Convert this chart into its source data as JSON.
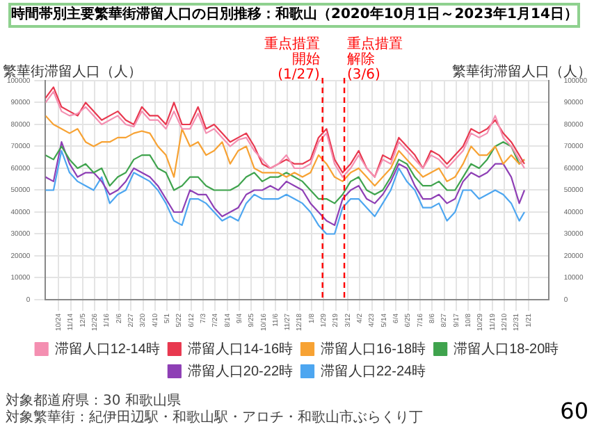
{
  "chart_data": {
    "type": "line",
    "title": "時間帯別主要繁華街滞留人口の日別推移：和歌山（2020年10月1日～2023年1月14日）",
    "ylabel": "繁華街滞留人口（人）",
    "y2label": "繁華街滞留人口（人）",
    "x": [
      "2020-10-01",
      "2020-10-15",
      "2020-10-29",
      "2020-11-12",
      "2020-11-26",
      "2020-12-10",
      "2020-12-24",
      "2021-01-07",
      "2021-01-21",
      "2021-02-04",
      "2021-02-18",
      "2021-03-04",
      "2021-03-18",
      "2021-04-01",
      "2021-04-15",
      "2021-04-29",
      "2021-05-13",
      "2021-05-27",
      "2021-06-10",
      "2021-06-24",
      "2021-07-08",
      "2021-07-22",
      "2021-08-05",
      "2021-08-19",
      "2021-09-02",
      "2021-09-16",
      "2021-09-30",
      "2021-10-14",
      "2021-10-28",
      "2021-11-11",
      "2021-11-25",
      "2021-12-09",
      "2021-12-23",
      "2022-01-06",
      "2022-01-20",
      "2022-02-03",
      "2022-02-17",
      "2022-03-03",
      "2022-03-17",
      "2022-03-31",
      "2022-04-14",
      "2022-04-28",
      "2022-05-12",
      "2022-05-26",
      "2022-06-09",
      "2022-06-23",
      "2022-07-07",
      "2022-07-21",
      "2022-08-04",
      "2022-08-18",
      "2022-09-01",
      "2022-09-15",
      "2022-09-29",
      "2022-10-13",
      "2022-10-27",
      "2022-11-10",
      "2022-11-24",
      "2022-12-08",
      "2022-12-22",
      "2023-01-05",
      "2023-01-14"
    ],
    "series": [
      {
        "name": "滞留人口12-14時",
        "color": "#f48fb1",
        "values": [
          90000,
          95000,
          86000,
          84000,
          85000,
          88000,
          84000,
          80000,
          82000,
          84000,
          80000,
          79000,
          86000,
          82000,
          82000,
          78000,
          86000,
          78000,
          78000,
          85000,
          76000,
          78000,
          74000,
          70000,
          73000,
          74000,
          68000,
          64000,
          60000,
          62000,
          66000,
          60000,
          60000,
          62000,
          72000,
          76000,
          62000,
          56000,
          60000,
          66000,
          60000,
          56000,
          64000,
          62000,
          72000,
          68000,
          64000,
          60000,
          66000,
          64000,
          60000,
          64000,
          68000,
          76000,
          74000,
          76000,
          84000,
          74000,
          70000,
          64000,
          60000
        ]
      },
      {
        "name": "滞留人口14-16時",
        "color": "#e8384f",
        "values": [
          92000,
          97000,
          88000,
          86000,
          84000,
          90000,
          86000,
          82000,
          84000,
          86000,
          82000,
          80000,
          88000,
          84000,
          84000,
          80000,
          90000,
          80000,
          80000,
          88000,
          78000,
          80000,
          76000,
          72000,
          74000,
          76000,
          70000,
          62000,
          60000,
          62000,
          64000,
          62000,
          62000,
          64000,
          74000,
          78000,
          64000,
          58000,
          62000,
          68000,
          60000,
          56000,
          66000,
          64000,
          74000,
          70000,
          66000,
          60000,
          68000,
          66000,
          62000,
          66000,
          70000,
          78000,
          76000,
          78000,
          82000,
          76000,
          72000,
          66000,
          62000
        ]
      },
      {
        "name": "滞留人口16-18時",
        "color": "#f7a233",
        "values": [
          84000,
          80000,
          78000,
          76000,
          78000,
          72000,
          70000,
          72000,
          72000,
          74000,
          74000,
          76000,
          77000,
          76000,
          70000,
          66000,
          56000,
          78000,
          70000,
          72000,
          66000,
          68000,
          72000,
          62000,
          68000,
          70000,
          60000,
          58000,
          58000,
          58000,
          56000,
          58000,
          56000,
          58000,
          66000,
          62000,
          56000,
          54000,
          58000,
          60000,
          56000,
          52000,
          56000,
          60000,
          68000,
          64000,
          60000,
          56000,
          58000,
          60000,
          54000,
          56000,
          62000,
          70000,
          66000,
          66000,
          70000,
          62000,
          66000,
          62000,
          64000
        ]
      },
      {
        "name": "滞留人口18-20時",
        "color": "#3fa34d",
        "values": [
          66000,
          64000,
          70000,
          64000,
          60000,
          62000,
          58000,
          60000,
          52000,
          56000,
          58000,
          64000,
          66000,
          66000,
          60000,
          58000,
          50000,
          52000,
          56000,
          56000,
          52000,
          50000,
          50000,
          50000,
          52000,
          56000,
          58000,
          54000,
          56000,
          56000,
          58000,
          56000,
          54000,
          50000,
          46000,
          46000,
          44000,
          48000,
          54000,
          56000,
          50000,
          48000,
          50000,
          56000,
          64000,
          62000,
          56000,
          52000,
          52000,
          54000,
          50000,
          50000,
          56000,
          62000,
          60000,
          64000,
          70000,
          72000,
          70000,
          62000,
          64000
        ]
      },
      {
        "name": "滞留人口20-22時",
        "color": "#8e3fb5",
        "values": [
          56000,
          54000,
          72000,
          62000,
          56000,
          58000,
          58000,
          54000,
          48000,
          50000,
          54000,
          60000,
          58000,
          56000,
          52000,
          46000,
          40000,
          40000,
          50000,
          48000,
          48000,
          42000,
          38000,
          40000,
          42000,
          48000,
          50000,
          50000,
          52000,
          50000,
          54000,
          52000,
          50000,
          44000,
          40000,
          36000,
          34000,
          46000,
          50000,
          52000,
          46000,
          44000,
          48000,
          54000,
          62000,
          60000,
          52000,
          46000,
          46000,
          48000,
          44000,
          46000,
          54000,
          58000,
          56000,
          58000,
          62000,
          62000,
          56000,
          44000,
          50000
        ]
      },
      {
        "name": "滞留人口22-24時",
        "color": "#4da6f0",
        "values": [
          50000,
          50000,
          68000,
          58000,
          54000,
          52000,
          50000,
          56000,
          44000,
          48000,
          50000,
          58000,
          56000,
          54000,
          50000,
          44000,
          36000,
          34000,
          46000,
          46000,
          44000,
          40000,
          36000,
          38000,
          36000,
          44000,
          48000,
          46000,
          46000,
          46000,
          48000,
          46000,
          44000,
          40000,
          34000,
          30000,
          30000,
          42000,
          46000,
          46000,
          42000,
          38000,
          44000,
          50000,
          60000,
          54000,
          50000,
          42000,
          42000,
          44000,
          36000,
          40000,
          50000,
          50000,
          46000,
          48000,
          50000,
          48000,
          44000,
          36000,
          40000
        ]
      }
    ],
    "xlim": [
      "2020-10-01",
      "2023-02-25"
    ],
    "xticks": [
      {
        "value": "2020-10-24",
        "label": "10/24"
      },
      {
        "value": "2020-11-14",
        "label": "11/14"
      },
      {
        "value": "2020-12-05",
        "label": "12/5"
      },
      {
        "value": "2020-12-26",
        "label": "12/26"
      },
      {
        "value": "2021-01-16",
        "label": "1/16"
      },
      {
        "value": "2021-02-06",
        "label": "2/6"
      },
      {
        "value": "2021-02-27",
        "label": "2/27"
      },
      {
        "value": "2021-03-20",
        "label": "3/20"
      },
      {
        "value": "2021-04-10",
        "label": "4/10"
      },
      {
        "value": "2021-05-01",
        "label": "5/1"
      },
      {
        "value": "2021-05-22",
        "label": "5/22"
      },
      {
        "value": "2021-06-12",
        "label": "6/12"
      },
      {
        "value": "2021-07-03",
        "label": "7/3"
      },
      {
        "value": "2021-07-24",
        "label": "7/24"
      },
      {
        "value": "2021-08-14",
        "label": "8/14"
      },
      {
        "value": "2021-09-04",
        "label": "9/4"
      },
      {
        "value": "2021-09-25",
        "label": "9/25"
      },
      {
        "value": "2021-10-16",
        "label": "10/16"
      },
      {
        "value": "2021-11-06",
        "label": "11/6"
      },
      {
        "value": "2021-11-27",
        "label": "11/27"
      },
      {
        "value": "2021-12-18",
        "label": "12/18"
      },
      {
        "value": "2022-01-08",
        "label": "1/8"
      },
      {
        "value": "2022-01-29",
        "label": "1/29"
      },
      {
        "value": "2022-02-19",
        "label": "2/19"
      },
      {
        "value": "2022-03-12",
        "label": "3/12"
      },
      {
        "value": "2022-04-02",
        "label": "4/2"
      },
      {
        "value": "2022-04-23",
        "label": "4/23"
      },
      {
        "value": "2022-05-14",
        "label": "5/14"
      },
      {
        "value": "2022-06-04",
        "label": "6/4"
      },
      {
        "value": "2022-06-25",
        "label": "6/25"
      },
      {
        "value": "2022-07-16",
        "label": "7/16"
      },
      {
        "value": "2022-08-06",
        "label": "8/6"
      },
      {
        "value": "2022-08-27",
        "label": "8/27"
      },
      {
        "value": "2022-09-17",
        "label": "9/17"
      },
      {
        "value": "2022-10-08",
        "label": "10/8"
      },
      {
        "value": "2022-10-29",
        "label": "10/29"
      },
      {
        "value": "2022-11-19",
        "label": "11/19"
      },
      {
        "value": "2022-12-10",
        "label": "12/10"
      },
      {
        "value": "2022-12-31",
        "label": "12/31"
      },
      {
        "value": "2023-01-21",
        "label": "1/21"
      }
    ],
    "ylim": [
      0,
      100000
    ],
    "yticks": [
      0,
      10000,
      20000,
      30000,
      40000,
      50000,
      60000,
      70000,
      80000,
      90000,
      100000
    ],
    "y2lim": [
      0,
      100000
    ],
    "y2ticks": [
      0,
      10000,
      20000,
      30000,
      40000,
      50000,
      60000,
      70000,
      80000,
      90000,
      100000
    ],
    "ref_lines": [
      {
        "axis": "x",
        "value": "2022-01-27",
        "label": "重点措置開始(1/27)",
        "color": "#ff0000",
        "line_style": "dashed"
      },
      {
        "axis": "x",
        "value": "2022-03-06",
        "label": "重点措置解除(3/6)",
        "color": "#ff0000",
        "line_style": "dashed"
      }
    ],
    "grid": true,
    "legend": "bottom",
    "annotations": [
      "対象都道府県：30 和歌山県",
      "対象繁華街：紀伊田辺駅・和歌山駅・アロチ・和歌山市ぶらくり丁",
      "60"
    ]
  }
}
